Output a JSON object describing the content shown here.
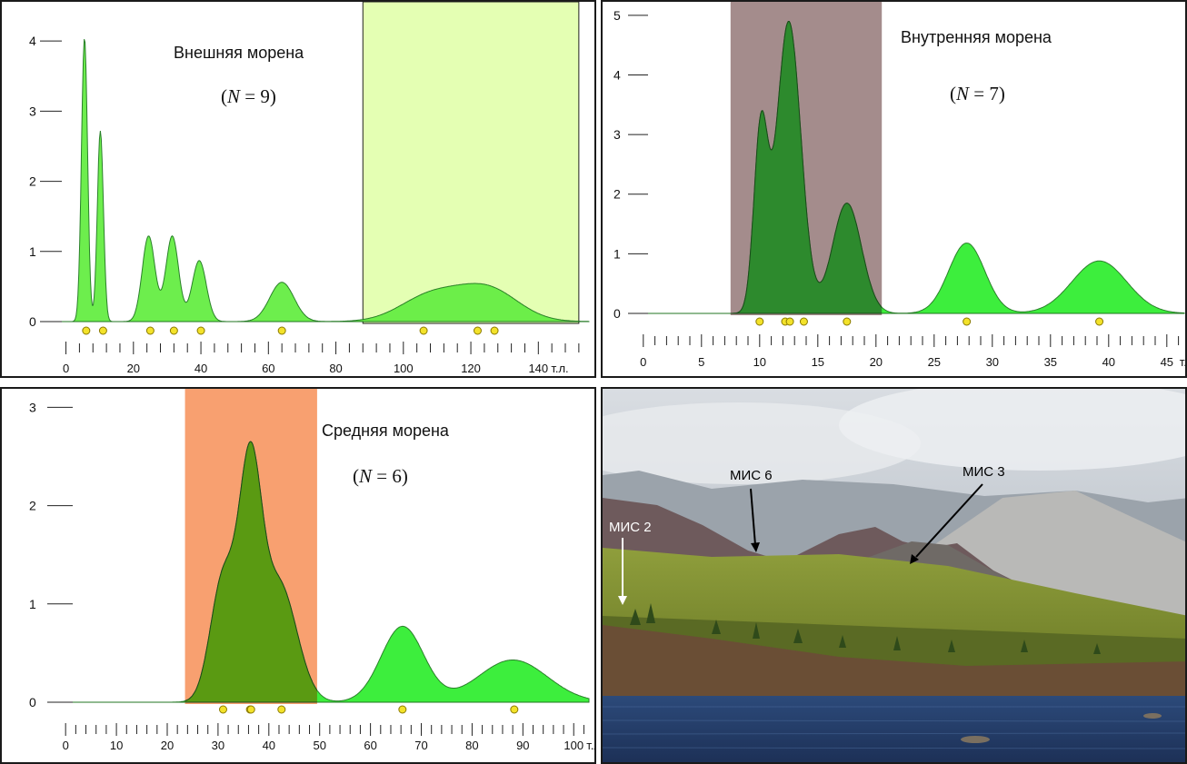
{
  "chart_data": [
    {
      "type": "area",
      "title": "Внешняя морена",
      "n_label": "(N = 9)",
      "n_value": "9",
      "x_unit_label": "т.л.",
      "xlim": [
        -5,
        155
      ],
      "ylim": [
        0,
        4.3
      ],
      "x_ticks": [
        0,
        20,
        40,
        60,
        80,
        100,
        120,
        140
      ],
      "y_ticks": [
        0,
        1,
        2,
        3,
        4
      ],
      "highlight_range": [
        88,
        152
      ],
      "highlight_color": "#e4ffb3",
      "fill_color": "#66ee44",
      "peaks": [
        {
          "center": 5.5,
          "height": 4.05,
          "sigma": 0.9
        },
        {
          "center": 10.2,
          "height": 2.72,
          "sigma": 0.9
        },
        {
          "center": 24.5,
          "height": 1.22,
          "sigma": 1.9
        },
        {
          "center": 31.5,
          "height": 1.22,
          "sigma": 1.9
        },
        {
          "center": 39.5,
          "height": 0.87,
          "sigma": 2.1
        },
        {
          "center": 64,
          "height": 0.56,
          "sigma": 3.6
        },
        {
          "center": 108,
          "height": 0.36,
          "sigma": 9
        },
        {
          "center": 125,
          "height": 0.46,
          "sigma": 9
        }
      ],
      "samples": [
        6,
        11,
        25,
        32,
        40,
        64,
        106,
        122,
        127
      ]
    },
    {
      "type": "area",
      "title": "Внутренняя морена",
      "n_label": "(N = 7)",
      "n_value": "7",
      "x_unit_label": "т.л.",
      "xlim": [
        -1,
        46.5
      ],
      "ylim": [
        0,
        5.15
      ],
      "x_ticks": [
        0,
        5,
        10,
        15,
        20,
        25,
        30,
        35,
        40,
        45
      ],
      "y_ticks": [
        0,
        1,
        2,
        3,
        4,
        5
      ],
      "highlight_range": [
        7.5,
        20.5
      ],
      "highlight_color": "#a48c8c",
      "highlight_fill_color": "#2d8a2d",
      "fill_color": "#33ee33",
      "peaks": [
        {
          "center": 10.1,
          "height": 3.0,
          "sigma": 0.6
        },
        {
          "center": 12.5,
          "height": 4.9,
          "sigma": 1.05
        },
        {
          "center": 17.5,
          "height": 1.85,
          "sigma": 1.25
        },
        {
          "center": 27.8,
          "height": 1.18,
          "sigma": 1.55
        },
        {
          "center": 39.2,
          "height": 0.88,
          "sigma": 2.35
        }
      ],
      "samples": [
        10,
        12.2,
        12.6,
        13.8,
        17.5,
        27.8,
        39.2
      ]
    },
    {
      "type": "area",
      "title": "Средняя морена",
      "n_label": "(N = 6)",
      "n_value": "6",
      "x_unit_label": "т.л.",
      "xlim": [
        -2,
        103
      ],
      "ylim": [
        0,
        3.05
      ],
      "x_ticks": [
        0,
        10,
        20,
        30,
        40,
        50,
        60,
        70,
        80,
        90,
        100
      ],
      "y_ticks": [
        0,
        1,
        2,
        3
      ],
      "highlight_range": [
        23.5,
        49.5
      ],
      "highlight_color": "#f8a070",
      "highlight_fill_color": "#5a9a12",
      "fill_color": "#33ee33",
      "peaks": [
        {
          "center": 31,
          "height": 1.25,
          "sigma": 2.5
        },
        {
          "center": 36.3,
          "height": 2.2,
          "sigma": 2.2
        },
        {
          "center": 42,
          "height": 1.2,
          "sigma": 3.5
        },
        {
          "center": 66.3,
          "height": 0.77,
          "sigma": 4.2
        },
        {
          "center": 88,
          "height": 0.43,
          "sigma": 6.8
        }
      ],
      "samples": [
        31,
        36.3,
        36.5,
        42.5,
        66.3,
        88.3
      ]
    }
  ],
  "photo": {
    "labels": [
      "МИС 2",
      "МИС 6",
      "МИС 3"
    ]
  }
}
